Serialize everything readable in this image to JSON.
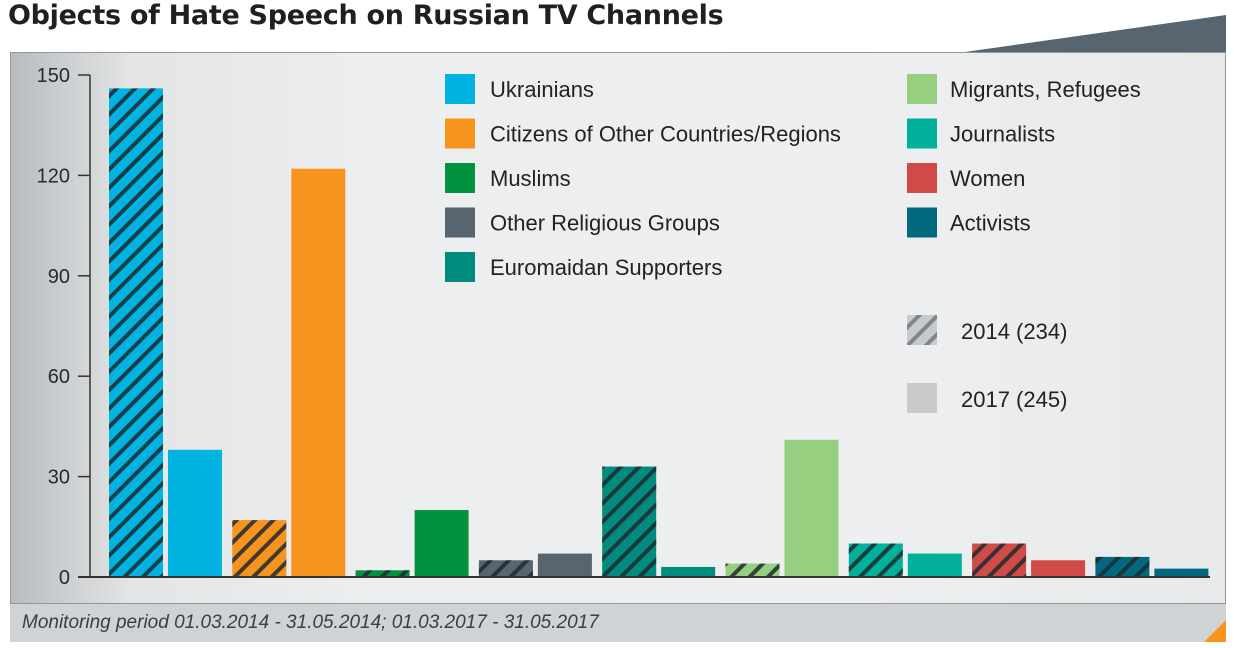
{
  "title": "Objects of Hate Speech on Russian TV Channels",
  "footer": "Monitoring period 01.03.2014 - 31.05.2014; 01.03.2017 - 31.05.2017",
  "chart_data": {
    "type": "bar",
    "title": "Objects of Hate Speech on Russian TV Channels",
    "xlabel": "",
    "ylabel": "",
    "ylim": [
      0,
      150
    ],
    "yticks": [
      0,
      30,
      60,
      90,
      120,
      150
    ],
    "grid": false,
    "categories": [
      "Ukrainians",
      "Citizens of Other Countries/Regions",
      "Muslims",
      "Other Religious Groups",
      "Euromaidan Supporters",
      "Migrants, Refugees",
      "Journalists",
      "Women",
      "Activists"
    ],
    "colors": [
      "#00b3e1",
      "#f7941e",
      "#00923f",
      "#56656f",
      "#008c7d",
      "#96cf80",
      "#00b09b",
      "#d04b48",
      "#006980"
    ],
    "series": [
      {
        "name": "2014 (234)",
        "pattern": "hatched",
        "values": [
          146,
          17,
          2,
          5,
          33,
          4,
          10,
          10,
          6
        ]
      },
      {
        "name": "2017 (245)",
        "pattern": "solid",
        "values": [
          38,
          122,
          20,
          7,
          3,
          41,
          7,
          5,
          2.5
        ]
      }
    ],
    "legend": {
      "categories_column_1": [
        "Ukrainians",
        "Citizens of Other Countries/Regions",
        "Muslims",
        "Other Religious Groups",
        "Euromaidan Supporters"
      ],
      "categories_column_2": [
        "Migrants, Refugees",
        "Journalists",
        "Women",
        "Activists"
      ],
      "years": [
        "2014 (234)",
        "2017 (245)"
      ],
      "placement": "top-right"
    }
  }
}
